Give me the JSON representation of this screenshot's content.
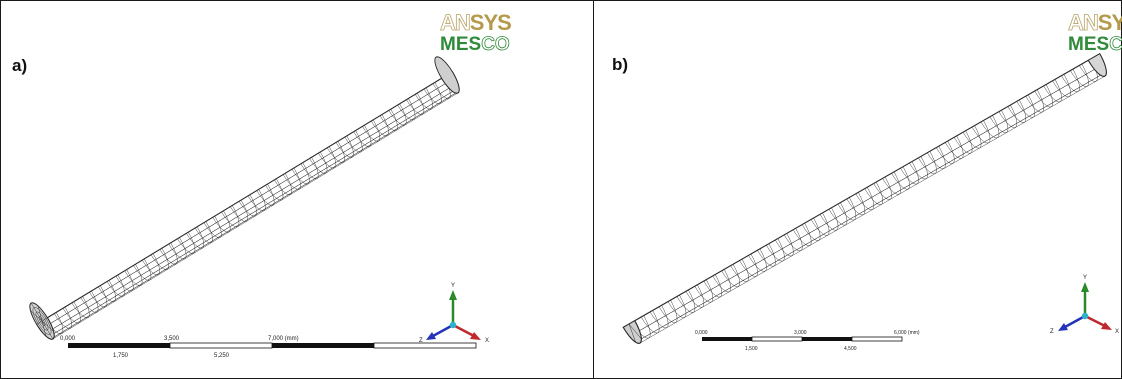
{
  "panels": [
    {
      "label": "a)",
      "logo": {
        "line1_outline": "AN",
        "line1_solid": "SYS",
        "line2_solid": "MES",
        "line2_outline": "CO"
      },
      "shape": "cylinder",
      "scale": {
        "top_ticks": [
          "0,000",
          "3,500",
          "7,000 (mm)"
        ],
        "bottom_ticks": [
          "1,750",
          "5,250"
        ]
      },
      "triad": {
        "y": "Y",
        "x": "X",
        "z": "Z"
      }
    },
    {
      "label": "b)",
      "logo": {
        "line1_outline": "AN",
        "line1_solid": "SYS",
        "line2_solid": "MES",
        "line2_outline": "CO"
      },
      "shape": "quarter-cylinder",
      "scale": {
        "top_ticks": [
          "0,000",
          "3,000",
          "6,000 (mm)"
        ],
        "bottom_ticks": [
          "1,500",
          "4,500"
        ]
      },
      "triad": {
        "y": "Y",
        "x": "X",
        "z": "Z"
      }
    }
  ],
  "colors": {
    "mesh_fill": "#dcdcdc",
    "mesh_line": "#2a2a2a",
    "x_axis": "#c0282d",
    "y_axis": "#2a8a2a",
    "z_axis": "#2434b8",
    "origin": "#2ab3c8"
  }
}
